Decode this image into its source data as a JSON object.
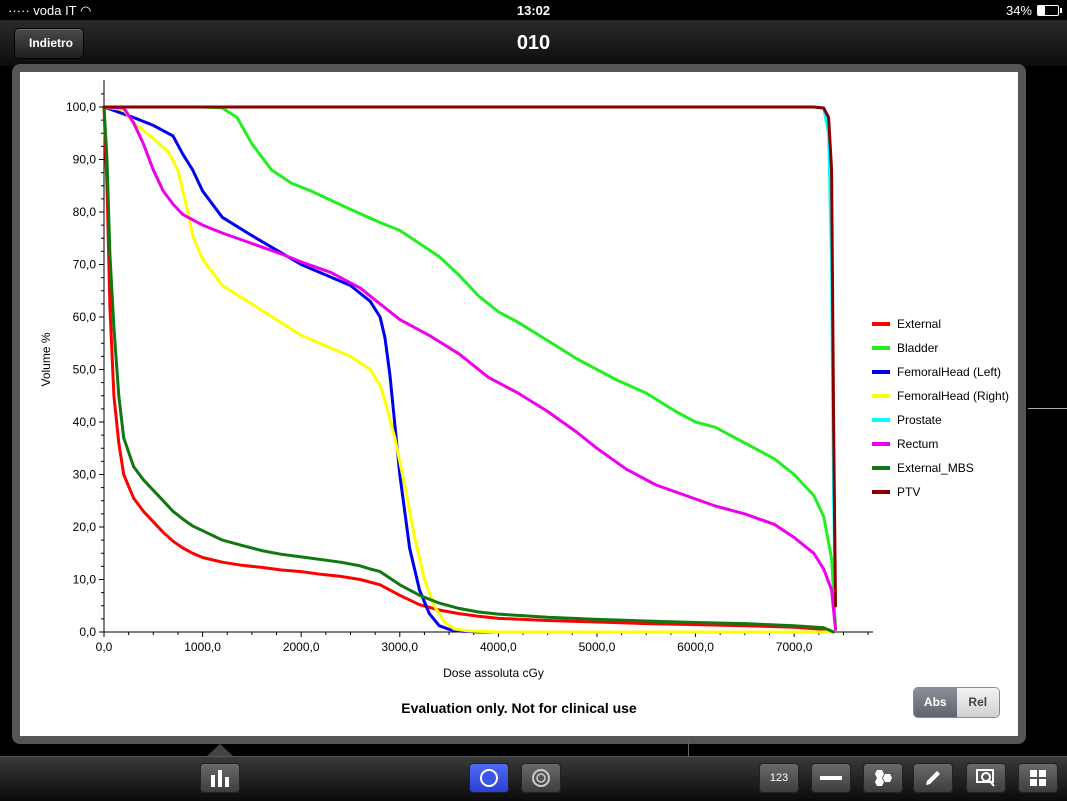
{
  "status": {
    "carrier": "voda IT",
    "time": "13:02",
    "battery": "34%",
    "battery_fraction": 0.34
  },
  "nav": {
    "back_label": "Indietro",
    "title": "010"
  },
  "toolbar": {
    "stats_icon": "bar-chart-icon",
    "circle_icon": "filled-circle-icon",
    "ring_icon": "ring-icon",
    "numbers_label": "123",
    "ruler_icon": "ruler-icon",
    "hex_icon": "hexagons-icon",
    "pencil_icon": "pencil-icon",
    "zoom_icon": "zoom-region-icon",
    "grid_icon": "grid-icon"
  },
  "disclaimer": "Evaluation only. Not for clinical use",
  "toggle": {
    "abs": "Abs",
    "rel": "Rel",
    "selected": "Abs"
  },
  "chart_data": {
    "type": "line",
    "title": "",
    "xlabel": "Dose assoluta cGy",
    "ylabel": "Volume %",
    "xlim": [
      0,
      7800
    ],
    "ylim": [
      0,
      100
    ],
    "xticks": [
      "0,0",
      "1000,0",
      "2000,0",
      "3000,0",
      "4000,0",
      "5000,0",
      "6000,0",
      "7000,0"
    ],
    "xtick_values": [
      0,
      1000,
      2000,
      3000,
      4000,
      5000,
      6000,
      7000
    ],
    "yticks": [
      "0,0",
      "10,0",
      "20,0",
      "30,0",
      "40,0",
      "50,0",
      "60,0",
      "70,0",
      "80,0",
      "90,0",
      "100,0"
    ],
    "ytick_values": [
      0,
      10,
      20,
      30,
      40,
      50,
      60,
      70,
      80,
      90,
      100
    ],
    "legend_position": "right",
    "series": [
      {
        "name": "External",
        "color": "#ff0000",
        "x": [
          0,
          30,
          60,
          100,
          150,
          200,
          300,
          400,
          500,
          600,
          700,
          800,
          900,
          1000,
          1200,
          1400,
          1600,
          1800,
          2000,
          2200,
          2400,
          2600,
          2800,
          3000,
          3200,
          3400,
          3600,
          3800,
          4000,
          4500,
          5000,
          5500,
          6000,
          6500,
          7000,
          7300,
          7400
        ],
        "y": [
          100,
          85,
          62,
          45,
          36,
          30,
          25.5,
          23,
          21,
          19,
          17.3,
          16,
          15,
          14.2,
          13.3,
          12.7,
          12.3,
          11.8,
          11.5,
          11,
          10.6,
          10,
          9,
          7,
          5.2,
          4.2,
          3.5,
          3,
          2.6,
          2.2,
          1.9,
          1.6,
          1.4,
          1.2,
          0.9,
          0.5,
          0
        ]
      },
      {
        "name": "Bladder",
        "color": "#22ee22",
        "x": [
          0,
          1000,
          1200,
          1350,
          1500,
          1700,
          1900,
          2100,
          2500,
          2800,
          3000,
          3200,
          3400,
          3600,
          3800,
          4000,
          4200,
          4500,
          4800,
          5000,
          5200,
          5500,
          5800,
          6000,
          6200,
          6500,
          6800,
          7000,
          7200,
          7300,
          7380,
          7420
        ],
        "y": [
          100,
          100,
          99.8,
          98,
          93,
          88,
          85.5,
          84,
          80.5,
          78,
          76.5,
          74,
          71.5,
          68,
          64,
          61,
          59,
          55.5,
          52,
          50,
          48,
          45.5,
          42,
          40,
          39,
          36,
          33,
          30,
          26,
          22,
          14,
          1
        ]
      },
      {
        "name": "FemoralHead (Left)",
        "color": "#0000ee",
        "x": [
          0,
          300,
          500,
          700,
          800,
          900,
          1000,
          1200,
          1500,
          2000,
          2500,
          2700,
          2800,
          2850,
          2900,
          3000,
          3100,
          3200,
          3300,
          3400,
          3500,
          3600,
          3800,
          4000
        ],
        "y": [
          100,
          98,
          96.5,
          94.5,
          91,
          88,
          84,
          79,
          75.5,
          70,
          66,
          63,
          60,
          56,
          49,
          30,
          16,
          8,
          3.5,
          1.2,
          0.5,
          0.2,
          0,
          0
        ]
      },
      {
        "name": "FemoralHead (Right)",
        "color": "#ffff00",
        "x": [
          0,
          200,
          300,
          500,
          650,
          750,
          800,
          850,
          900,
          1000,
          1200,
          1500,
          2000,
          2500,
          2700,
          2800,
          2850,
          2950,
          3050,
          3150,
          3250,
          3350,
          3450,
          3550,
          3700,
          4000,
          7400
        ],
        "y": [
          100,
          99.5,
          97,
          94,
          91.5,
          88,
          84,
          80,
          75.5,
          71,
          66,
          62.5,
          56.5,
          52.5,
          50,
          47,
          44,
          37,
          28,
          18,
          10,
          5,
          2,
          0.6,
          0.2,
          0,
          0
        ]
      },
      {
        "name": "Prostate",
        "color": "#00ffff",
        "x": [
          0,
          7200,
          7300,
          7350,
          7380,
          7400,
          7420
        ],
        "y": [
          100,
          100,
          99.8,
          95,
          70,
          25,
          5
        ]
      },
      {
        "name": "Rectum",
        "color": "#ee00ee",
        "x": [
          0,
          200,
          300,
          400,
          500,
          600,
          700,
          800,
          1000,
          1200,
          1500,
          1800,
          2000,
          2300,
          2600,
          2800,
          3000,
          3300,
          3600,
          3900,
          4200,
          4500,
          4800,
          5000,
          5300,
          5600,
          5900,
          6200,
          6500,
          6800,
          7000,
          7200,
          7300,
          7380,
          7420
        ],
        "y": [
          100,
          99.8,
          97,
          93,
          88,
          84,
          81.5,
          79.5,
          77.5,
          76,
          74,
          72,
          70.5,
          68.5,
          65.5,
          62.5,
          59.5,
          56.5,
          53,
          48.5,
          45.5,
          42,
          38,
          35,
          31,
          28,
          26,
          24,
          22.5,
          20.5,
          18,
          15,
          12,
          8,
          0.5
        ]
      },
      {
        "name": "External_MBS",
        "color": "#117711",
        "x": [
          0,
          30,
          60,
          100,
          150,
          200,
          300,
          400,
          500,
          600,
          700,
          800,
          900,
          1000,
          1200,
          1400,
          1600,
          1800,
          2000,
          2400,
          2600,
          2700,
          2800,
          3000,
          3200,
          3400,
          3600,
          3800,
          4000,
          4500,
          5000,
          5500,
          6000,
          6500,
          7000,
          7300,
          7400
        ],
        "y": [
          100,
          90,
          72,
          58,
          45,
          37,
          31.5,
          29,
          27,
          25,
          23,
          21.5,
          20.2,
          19.3,
          17.5,
          16.5,
          15.5,
          14.8,
          14.3,
          13.3,
          12.6,
          12,
          11.5,
          9,
          7,
          5.5,
          4.5,
          3.8,
          3.4,
          2.8,
          2.4,
          2.1,
          1.8,
          1.6,
          1.2,
          0.8,
          0
        ]
      },
      {
        "name": "PTV",
        "color": "#880000",
        "x": [
          0,
          7200,
          7300,
          7350,
          7380,
          7400,
          7420
        ],
        "y": [
          100,
          100,
          99.8,
          98,
          88,
          40,
          5
        ]
      }
    ]
  }
}
